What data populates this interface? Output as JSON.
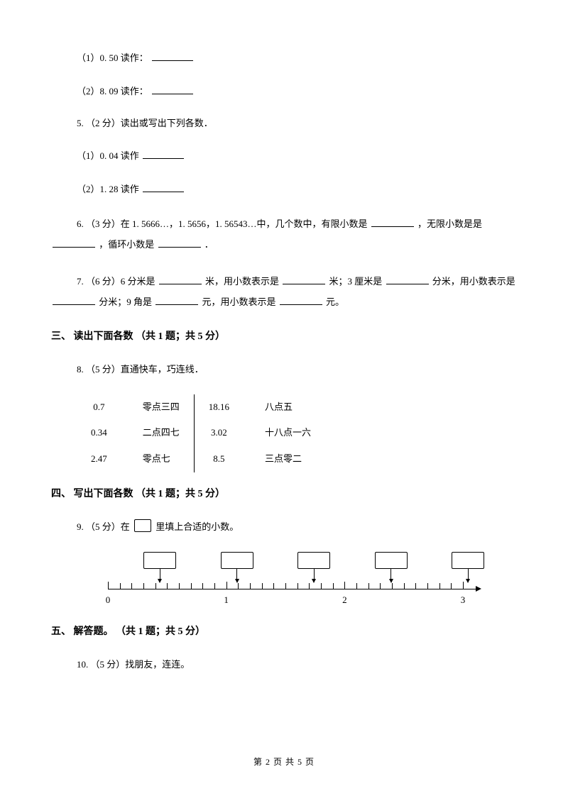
{
  "items": {
    "q4_1": "（1）0. 50 读作：",
    "q4_2": "（2）8. 09 读作：",
    "q5_stem": "5.  （2 分）读出或写出下列各数．",
    "q5_1": "（1）0. 04 读作",
    "q5_2": "（2）1. 28 读作",
    "q6_a": "6.   （3 分）在 1. 5666…，1. 5656，1. 56543…中，几个数中，有限小数是",
    "q6_b": "，无限小数是是",
    "q6_c": "，循环小数是",
    "q6_d": "．",
    "q7_a": "7.   （6 分）6 分米是",
    "q7_b": "米，用小数表示是",
    "q7_c": "米；3 厘米是",
    "q7_d": "分米，用小数表示是",
    "q7_e": "分米；9 角是",
    "q7_f": "元，用小数表示是",
    "q7_g": "元。"
  },
  "section3": {
    "title": "三、 读出下面各数  （共 1 题；共 5 分）",
    "q8_stem": "8.  （5 分）直通快车，巧连线．",
    "table": {
      "rows": [
        [
          "0.7",
          "零点三四",
          "18.16",
          "八点五"
        ],
        [
          "0.34",
          "二点四七",
          "3.02",
          "十八点一六"
        ],
        [
          "2.47",
          "零点七",
          "8.5",
          "三点零二"
        ]
      ]
    }
  },
  "section4": {
    "title": "四、 写出下面各数  （共 1 题；共 5 分）",
    "q9_a": "9.  （5 分）在",
    "q9_b": "里填上合适的小数。",
    "ticks": [
      "0",
      "1",
      "2",
      "3"
    ]
  },
  "section5": {
    "title": "五、 解答题。  （共 1 题；共 5 分）",
    "q10": "10.  （5 分）找朋友，连连。"
  },
  "footer": "第 2 页 共 5 页"
}
